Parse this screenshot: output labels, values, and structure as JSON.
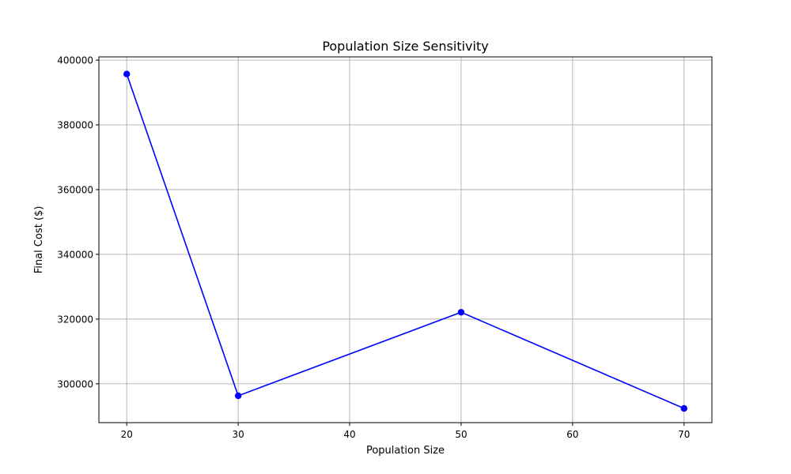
{
  "chart_data": {
    "type": "line",
    "title": "Population Size Sensitivity",
    "xlabel": "Population Size",
    "ylabel": "Final Cost ($)",
    "xlim": [
      17.5,
      72.5
    ],
    "ylim": [
      288000,
      401000
    ],
    "x_ticks": [
      20,
      30,
      40,
      50,
      60,
      70
    ],
    "y_ticks": [
      300000,
      320000,
      340000,
      360000,
      380000,
      400000
    ],
    "grid": true,
    "series": [
      {
        "color": "#0000ff",
        "marker": "circle",
        "x": [
          20,
          30,
          50,
          70
        ],
        "y": [
          395700,
          296300,
          322100,
          292400
        ]
      }
    ]
  }
}
